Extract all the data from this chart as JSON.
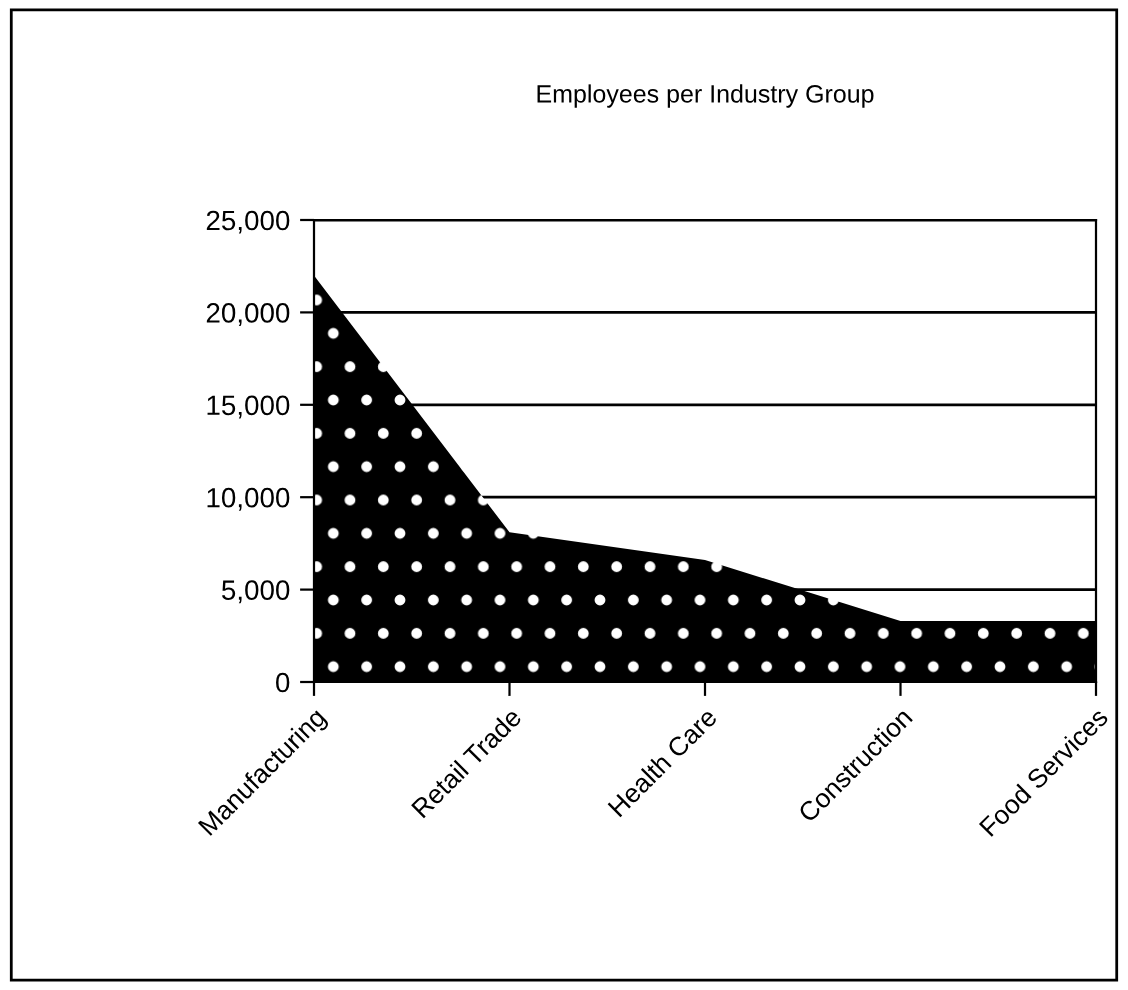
{
  "chart_data": {
    "type": "area",
    "title": "Employees per Industry Group",
    "categories": [
      "Manufacturing",
      "Retail Trade",
      "Health Care",
      "Construction",
      "Food Services"
    ],
    "values": [
      22000,
      8100,
      6600,
      3300,
      3300
    ],
    "color": "#000000",
    "ylim": [
      0,
      25000
    ],
    "yticks": [
      {
        "value": 0,
        "label": "0"
      },
      {
        "value": 5000,
        "label": "5,000"
      },
      {
        "value": 10000,
        "label": "10,000"
      },
      {
        "value": 15000,
        "label": "15,000"
      },
      {
        "value": 20000,
        "label": "20,000"
      },
      {
        "value": 25000,
        "label": "25,000"
      }
    ],
    "grid": "y",
    "legend": false
  }
}
